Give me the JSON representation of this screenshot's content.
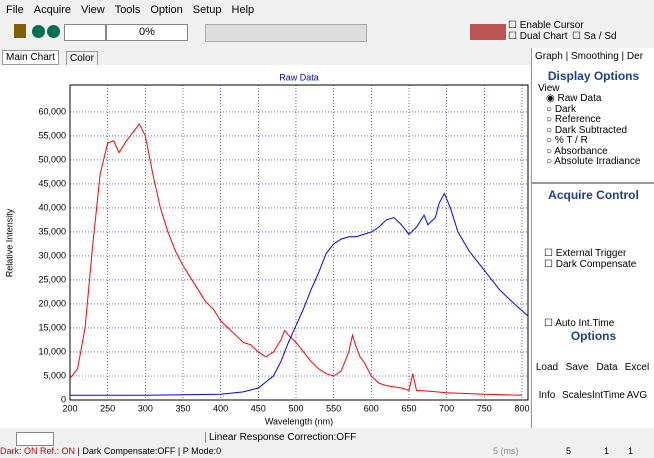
{
  "menu": [
    "File",
    "Acquire",
    "View",
    "Tools",
    "Option",
    "Setup",
    "Help"
  ],
  "toolbar": {
    "progress": "0%",
    "enable_cursor": "Enable Cursor",
    "dual_chart": "Dual Chart",
    "sa_sd": "Sa / Sd"
  },
  "tabs": [
    "Main Chart",
    "Color"
  ],
  "right_tabs": [
    "Graph",
    "Smoothing",
    "Der"
  ],
  "display_options": {
    "title": "Display Options",
    "view_label": "View",
    "options": [
      "Raw Data",
      "Dark",
      "Reference",
      "Dark Subtracted",
      "% T / R",
      "Absorbance",
      "Absolute Irradiance"
    ]
  },
  "acquire_control": {
    "title": "Acquire Control",
    "external_trigger": "External Trigger",
    "dark_compensate": "Dark Compensate",
    "auto_int_time": "Auto Int.Time"
  },
  "options": {
    "title": "Options",
    "buttons": [
      "Load",
      "Save",
      "Data",
      "Excel",
      "Info",
      "Scales",
      "IntTime",
      "AVG"
    ]
  },
  "status": {
    "linear": "Linear Response Correction:OFF",
    "dark": "Dark: ON",
    "ref": "Ref.: ON",
    "dark_comp": "Dark Compensate:OFF",
    "pmode": "P Mode:0",
    "int_time": "5 (ms)",
    "field1": "5",
    "field2": "1",
    "field3": "1"
  },
  "chart": {
    "type": "line",
    "title": "Raw Data",
    "x_label": "Wavelength (nm)",
    "y_label": "Relative Intensity",
    "xlim": [
      200,
      808
    ],
    "ylim": [
      0,
      65600
    ],
    "grid": true,
    "xticks": [
      200,
      250,
      300,
      350,
      400,
      450,
      500,
      550,
      600,
      650,
      700,
      750,
      800
    ],
    "yticks": [
      0,
      {
        "value": 5000,
        "label": "5,000"
      },
      {
        "value": 10000,
        "label": "10,000"
      },
      {
        "value": 15000,
        "label": "15,000"
      },
      {
        "value": 20000,
        "label": "20,000"
      },
      {
        "value": 25000,
        "label": "25,000"
      },
      {
        "value": 30000,
        "label": "30,000"
      },
      {
        "value": 35000,
        "label": "35,000"
      },
      {
        "value": 40000,
        "label": "40,000"
      },
      {
        "value": 45000,
        "label": "45,000"
      },
      {
        "value": 50000,
        "label": "50,000"
      },
      {
        "value": 55000,
        "label": "55,000"
      },
      {
        "value": 60000,
        "label": "60,000"
      }
    ],
    "series": [
      {
        "color": "#ff0000",
        "x": [
          200,
          210,
          220,
          230,
          240,
          250,
          258,
          265,
          275,
          285,
          292,
          300,
          310,
          320,
          330,
          340,
          350,
          360,
          370,
          380,
          390,
          400,
          410,
          420,
          430,
          440,
          450,
          460,
          470,
          480,
          485,
          490,
          500,
          510,
          520,
          530,
          540,
          550,
          560,
          570,
          575,
          580,
          585,
          590,
          600,
          610,
          620,
          640,
          650,
          655,
          660,
          680,
          700,
          750,
          800
        ],
        "values": [
          4500,
          6500,
          15000,
          32000,
          47000,
          53500,
          54000,
          51500,
          54000,
          56000,
          57500,
          55000,
          47000,
          40000,
          35000,
          31000,
          28000,
          25500,
          23000,
          20500,
          19000,
          16500,
          15000,
          13500,
          12000,
          11500,
          10000,
          9000,
          10000,
          12500,
          14500,
          13500,
          12000,
          10000,
          8000,
          6500,
          5500,
          5000,
          6000,
          10000,
          13500,
          11000,
          9000,
          8000,
          5000,
          3500,
          3000,
          2500,
          2000,
          5500,
          2000,
          1800,
          1500,
          1200,
          1000
        ]
      },
      {
        "color": "#0000ff",
        "x": [
          200,
          300,
          400,
          430,
          450,
          470,
          480,
          490,
          500,
          510,
          520,
          530,
          540,
          550,
          560,
          570,
          580,
          590,
          600,
          610,
          620,
          630,
          640,
          650,
          660,
          670,
          675,
          685,
          690,
          697,
          705,
          715,
          730,
          750,
          770,
          790,
          808
        ],
        "values": [
          1000,
          1000,
          1200,
          1700,
          2500,
          5000,
          8000,
          12000,
          15500,
          19000,
          23000,
          26500,
          30500,
          32500,
          33500,
          34000,
          34000,
          34500,
          35000,
          36000,
          37500,
          38000,
          36500,
          34500,
          36000,
          38500,
          36500,
          38000,
          41000,
          43000,
          40000,
          35000,
          31000,
          27000,
          23000,
          20000,
          17500
        ]
      }
    ]
  }
}
